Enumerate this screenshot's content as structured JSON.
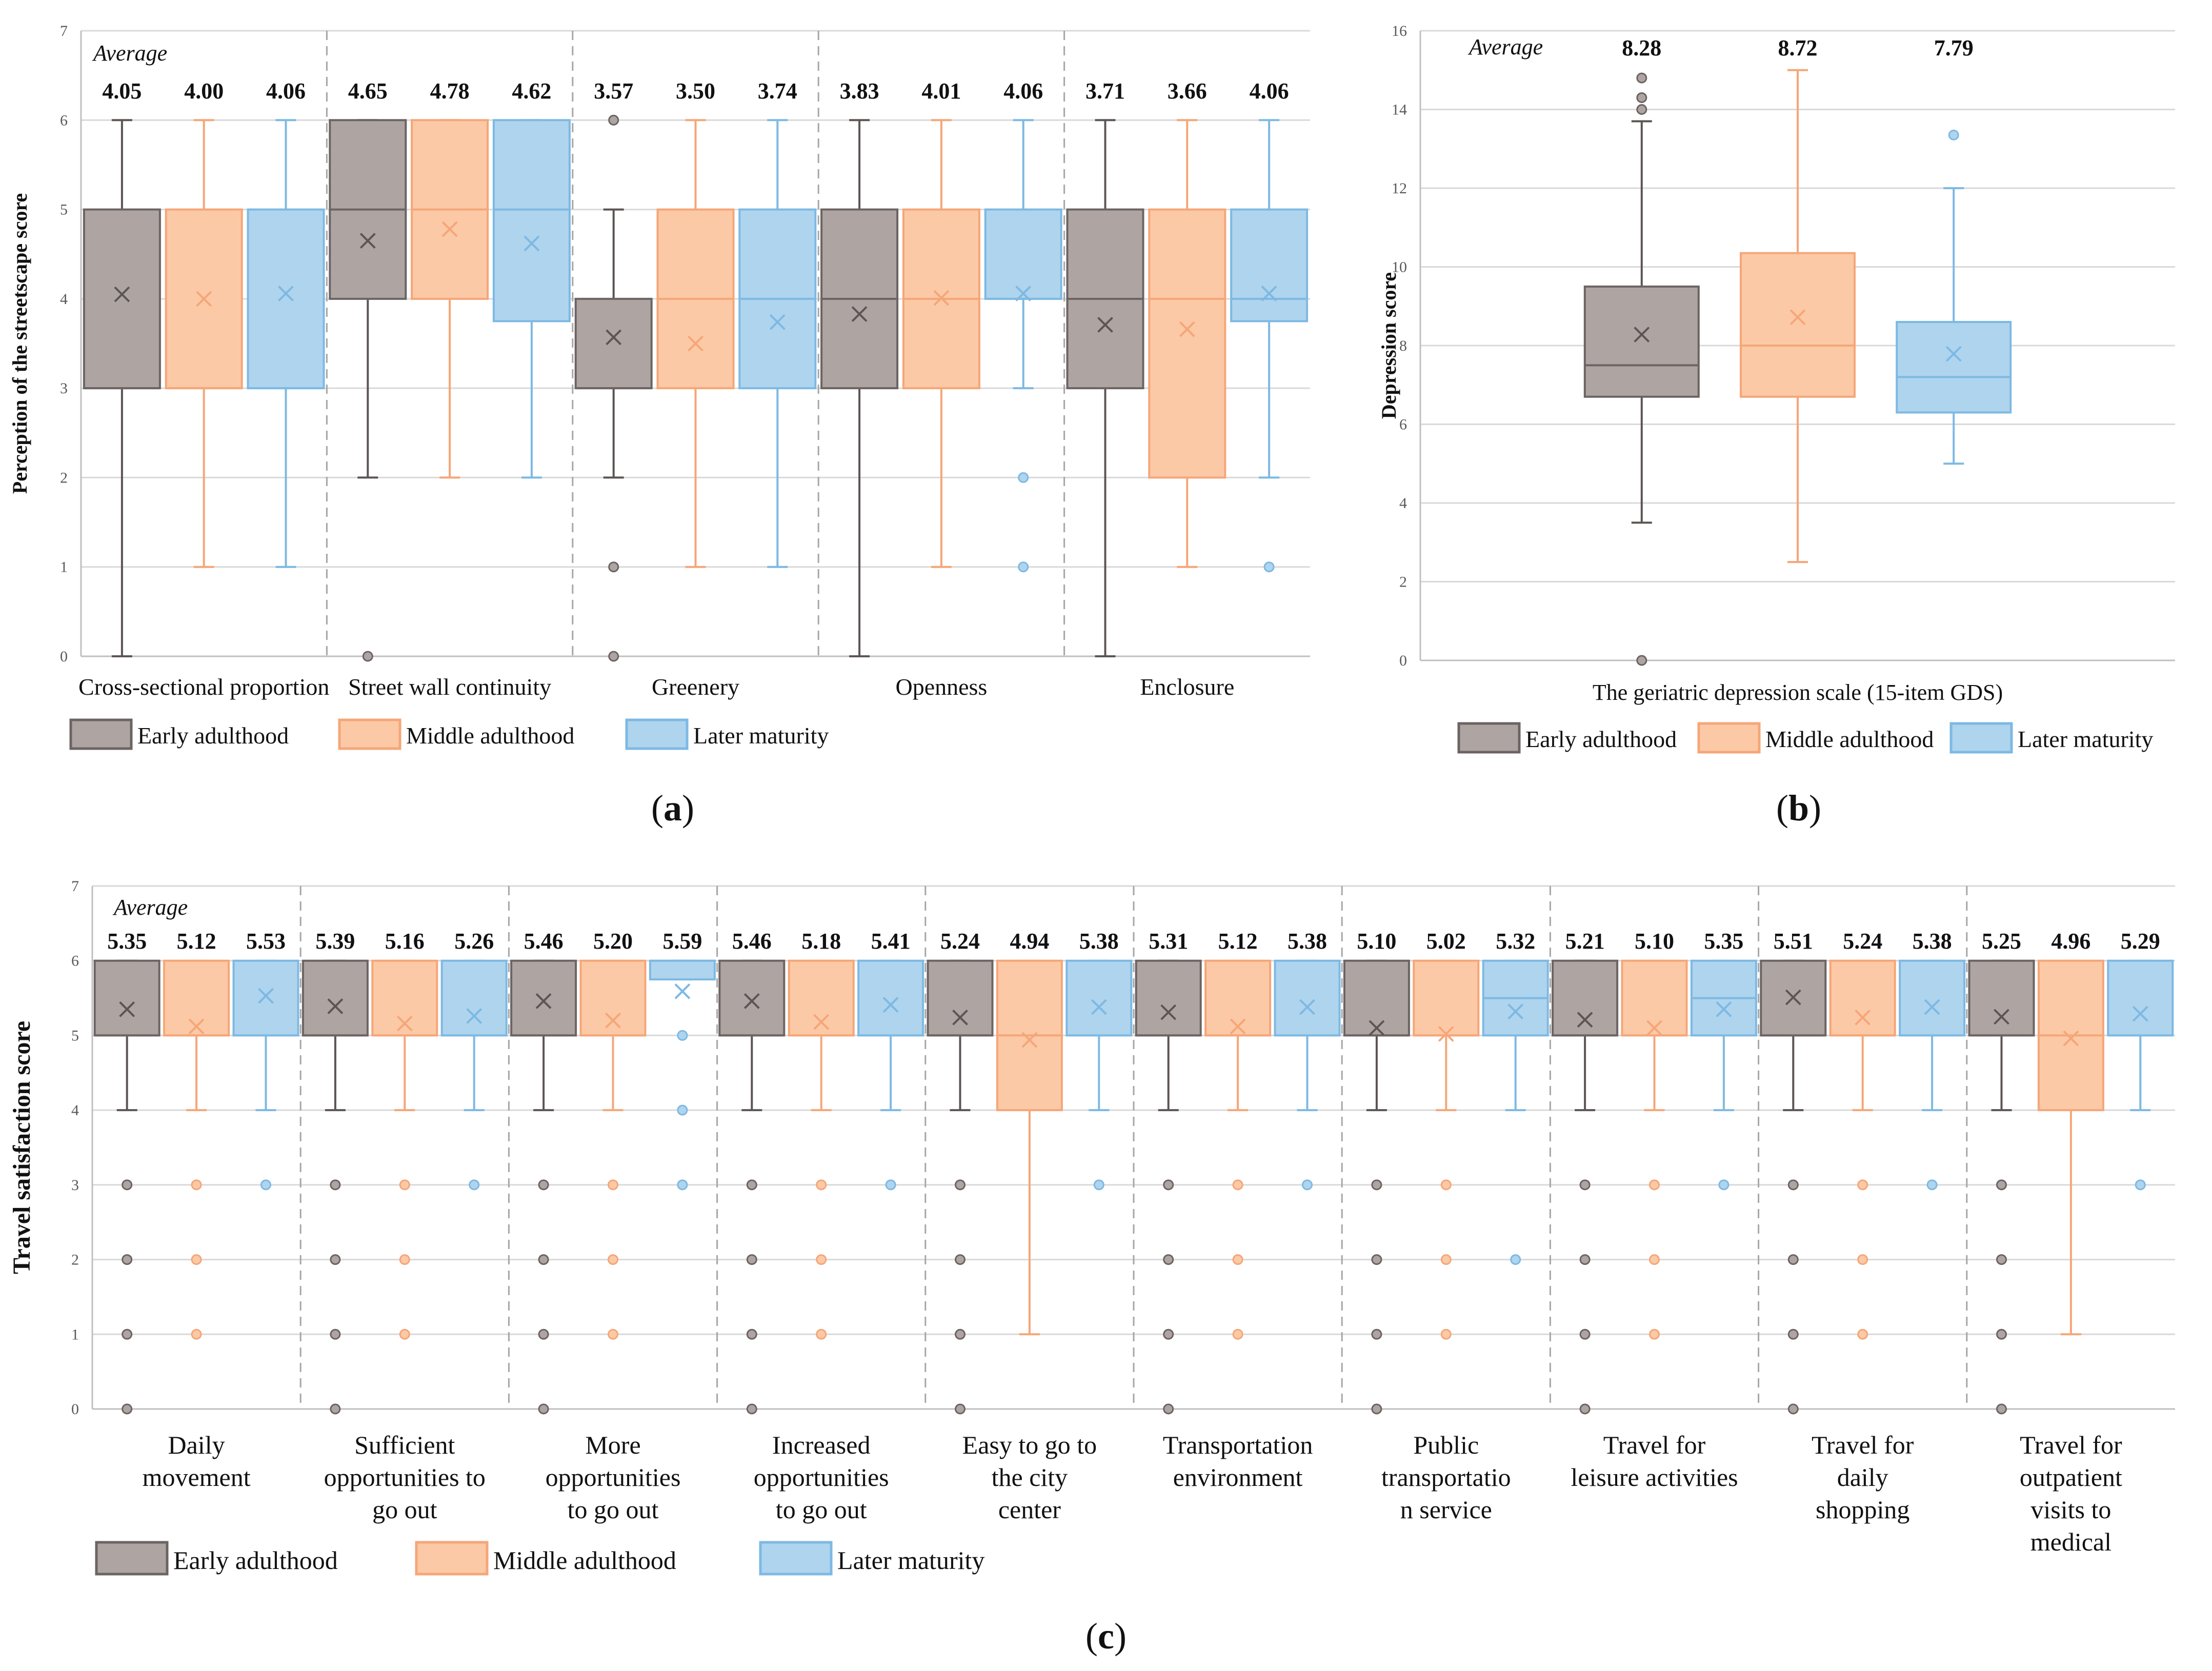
{
  "colors": {
    "Early adulthood": {
      "fill": "#aea5a3",
      "stroke": "#6b6463",
      "whisker": "#5c5554"
    },
    "Middle adulthood": {
      "fill": "#fcc9a6",
      "stroke": "#f5a678",
      "whisker": "#f5a678"
    },
    "Later maturity": {
      "fill": "#afd4ee",
      "stroke": "#7db9e3",
      "whisker": "#7db9e3"
    }
  },
  "chart_data": [
    {
      "id": "a",
      "panel_label": "a",
      "type": "boxplot",
      "ylabel": "Perception of the streetscape score",
      "ylim": [
        0,
        7
      ],
      "yticks": [
        0,
        1,
        2,
        3,
        4,
        5,
        6,
        7
      ],
      "average_label": "Average",
      "legend": [
        "Early adulthood",
        "Middle adulthood",
        "Later maturity"
      ],
      "categories": [
        {
          "label": "Cross-sectional proportion",
          "boxes": [
            {
              "group": "Early adulthood",
              "mean": 4.05,
              "mean_label": "4.05",
              "q1": 3,
              "median": 3,
              "q3": 5,
              "wlo": 0,
              "whi": 6,
              "outliers": []
            },
            {
              "group": "Middle adulthood",
              "mean": 4.0,
              "mean_label": "4.00",
              "q1": 3,
              "median": 3,
              "q3": 5,
              "wlo": 1,
              "whi": 6,
              "outliers": []
            },
            {
              "group": "Later maturity",
              "mean": 4.06,
              "mean_label": "4.06",
              "q1": 3,
              "median": 3,
              "q3": 5,
              "wlo": 1,
              "whi": 6,
              "outliers": []
            }
          ]
        },
        {
          "label": "Street wall continuity",
          "boxes": [
            {
              "group": "Early adulthood",
              "mean": 4.65,
              "mean_label": "4.65",
              "q1": 4,
              "median": 5,
              "q3": 6,
              "wlo": 2,
              "whi": 6,
              "outliers": [
                0
              ]
            },
            {
              "group": "Middle adulthood",
              "mean": 4.78,
              "mean_label": "4.78",
              "q1": 4,
              "median": 5,
              "q3": 6,
              "wlo": 2,
              "whi": 6,
              "outliers": []
            },
            {
              "group": "Later maturity",
              "mean": 4.62,
              "mean_label": "4.62",
              "q1": 3.75,
              "median": 5,
              "q3": 6,
              "wlo": 2,
              "whi": 6,
              "outliers": []
            }
          ]
        },
        {
          "label": "Greenery",
          "boxes": [
            {
              "group": "Early adulthood",
              "mean": 3.57,
              "mean_label": "3.57",
              "q1": 3,
              "median": 3,
              "q3": 4,
              "wlo": 2,
              "whi": 5,
              "outliers": [
                6,
                1,
                0
              ]
            },
            {
              "group": "Middle adulthood",
              "mean": 3.5,
              "mean_label": "3.50",
              "q1": 3,
              "median": 4,
              "q3": 5,
              "wlo": 1,
              "whi": 6,
              "outliers": []
            },
            {
              "group": "Later maturity",
              "mean": 3.74,
              "mean_label": "3.74",
              "q1": 3,
              "median": 4,
              "q3": 5,
              "wlo": 1,
              "whi": 6,
              "outliers": []
            }
          ]
        },
        {
          "label": "Openness",
          "boxes": [
            {
              "group": "Early adulthood",
              "mean": 3.83,
              "mean_label": "3.83",
              "q1": 3,
              "median": 4,
              "q3": 5,
              "wlo": 0,
              "whi": 6,
              "outliers": []
            },
            {
              "group": "Middle adulthood",
              "mean": 4.01,
              "mean_label": "4.01",
              "q1": 3,
              "median": 4,
              "q3": 5,
              "wlo": 1,
              "whi": 6,
              "outliers": []
            },
            {
              "group": "Later maturity",
              "mean": 4.06,
              "mean_label": "4.06",
              "q1": 4,
              "median": 4,
              "q3": 5,
              "wlo": 3,
              "whi": 6,
              "outliers": [
                2,
                1
              ]
            }
          ]
        },
        {
          "label": "Enclosure",
          "boxes": [
            {
              "group": "Early adulthood",
              "mean": 3.71,
              "mean_label": "3.71",
              "q1": 3,
              "median": 4,
              "q3": 5,
              "wlo": 0,
              "whi": 6,
              "outliers": []
            },
            {
              "group": "Middle adulthood",
              "mean": 3.66,
              "mean_label": "3.66",
              "q1": 2,
              "median": 4,
              "q3": 5,
              "wlo": 1,
              "whi": 6,
              "outliers": []
            },
            {
              "group": "Later maturity",
              "mean": 4.06,
              "mean_label": "4.06",
              "q1": 3.75,
              "median": 4,
              "q3": 5,
              "wlo": 2,
              "whi": 6,
              "outliers": [
                1
              ]
            }
          ]
        }
      ]
    },
    {
      "id": "b",
      "panel_label": "b",
      "type": "boxplot",
      "ylabel": "Depression score",
      "xlabel": "The geriatric depression scale (15-item GDS)",
      "ylim": [
        0,
        16
      ],
      "yticks": [
        0,
        2,
        4,
        6,
        8,
        10,
        12,
        14,
        16
      ],
      "average_label": "Average",
      "legend": [
        "Early adulthood",
        "Middle adulthood",
        "Later maturity"
      ],
      "categories": [
        {
          "label": "",
          "boxes": [
            {
              "group": "Early adulthood",
              "mean": 8.28,
              "mean_label": "8.28",
              "q1": 6.7,
              "median": 7.5,
              "q3": 9.5,
              "wlo": 3.5,
              "whi": 13.7,
              "outliers": [
                14.0,
                14.3,
                14.8,
                0
              ]
            },
            {
              "group": "Middle adulthood",
              "mean": 8.72,
              "mean_label": "8.72",
              "q1": 6.7,
              "median": 8.0,
              "q3": 10.35,
              "wlo": 2.5,
              "whi": 15.0,
              "outliers": []
            },
            {
              "group": "Later maturity",
              "mean": 7.79,
              "mean_label": "7.79",
              "q1": 6.3,
              "median": 7.2,
              "q3": 8.6,
              "wlo": 5.0,
              "whi": 12.0,
              "outliers": [
                13.35
              ]
            }
          ]
        }
      ]
    },
    {
      "id": "c",
      "panel_label": "c",
      "type": "boxplot",
      "ylabel": "Travel satisfaction score",
      "ylim": [
        0,
        7
      ],
      "yticks": [
        0,
        1,
        2,
        3,
        4,
        5,
        6,
        7
      ],
      "average_label": "Average",
      "legend": [
        "Early adulthood",
        "Middle adulthood",
        "Later maturity"
      ],
      "categories": [
        {
          "label": [
            "Daily",
            "movement"
          ],
          "boxes": [
            {
              "group": "Early adulthood",
              "mean": 5.35,
              "mean_label": "5.35",
              "q1": 5,
              "median": 5,
              "q3": 6,
              "wlo": 4,
              "whi": 6,
              "outliers": [
                3,
                2,
                1,
                0
              ]
            },
            {
              "group": "Middle adulthood",
              "mean": 5.12,
              "mean_label": "5.12",
              "q1": 5,
              "median": 5,
              "q3": 6,
              "wlo": 4,
              "whi": 6,
              "outliers": [
                3,
                2,
                1
              ]
            },
            {
              "group": "Later maturity",
              "mean": 5.53,
              "mean_label": "5.53",
              "q1": 5,
              "median": 5,
              "q3": 6,
              "wlo": 4,
              "whi": 6,
              "outliers": [
                3
              ]
            }
          ]
        },
        {
          "label": [
            "Sufficient",
            "opportunities to",
            "go out"
          ],
          "boxes": [
            {
              "group": "Early adulthood",
              "mean": 5.39,
              "mean_label": "5.39",
              "q1": 5,
              "median": 5,
              "q3": 6,
              "wlo": 4,
              "whi": 6,
              "outliers": [
                3,
                2,
                1,
                0
              ]
            },
            {
              "group": "Middle adulthood",
              "mean": 5.16,
              "mean_label": "5.16",
              "q1": 5,
              "median": 5,
              "q3": 6,
              "wlo": 4,
              "whi": 6,
              "outliers": [
                3,
                2,
                1
              ]
            },
            {
              "group": "Later maturity",
              "mean": 5.26,
              "mean_label": "5.26",
              "q1": 5,
              "median": 5,
              "q3": 6,
              "wlo": 4,
              "whi": 6,
              "outliers": [
                3
              ]
            }
          ]
        },
        {
          "label": [
            "More",
            "opportunities",
            "to go out"
          ],
          "boxes": [
            {
              "group": "Early adulthood",
              "mean": 5.46,
              "mean_label": "5.46",
              "q1": 5,
              "median": 5,
              "q3": 6,
              "wlo": 4,
              "whi": 6,
              "outliers": [
                3,
                2,
                1,
                0
              ]
            },
            {
              "group": "Middle adulthood",
              "mean": 5.2,
              "mean_label": "5.20",
              "q1": 5,
              "median": 5,
              "q3": 6,
              "wlo": 4,
              "whi": 6,
              "outliers": [
                3,
                2,
                1
              ]
            },
            {
              "group": "Later maturity",
              "mean": 5.59,
              "mean_label": "5.59",
              "q1": 5.75,
              "median": 6,
              "q3": 6,
              "wlo": 5.75,
              "whi": 6,
              "outliers": [
                5,
                4,
                3
              ]
            }
          ]
        },
        {
          "label": [
            "Increased",
            "opportunities",
            "to go out"
          ],
          "boxes": [
            {
              "group": "Early adulthood",
              "mean": 5.46,
              "mean_label": "5.46",
              "q1": 5,
              "median": 5,
              "q3": 6,
              "wlo": 4,
              "whi": 6,
              "outliers": [
                3,
                2,
                1,
                0
              ]
            },
            {
              "group": "Middle adulthood",
              "mean": 5.18,
              "mean_label": "5.18",
              "q1": 5,
              "median": 5,
              "q3": 6,
              "wlo": 4,
              "whi": 6,
              "outliers": [
                3,
                2,
                1
              ]
            },
            {
              "group": "Later maturity",
              "mean": 5.41,
              "mean_label": "5.41",
              "q1": 5,
              "median": 5,
              "q3": 6,
              "wlo": 4,
              "whi": 6,
              "outliers": [
                3
              ]
            }
          ]
        },
        {
          "label": [
            "Easy to go to",
            "the city",
            "center"
          ],
          "boxes": [
            {
              "group": "Early adulthood",
              "mean": 5.24,
              "mean_label": "5.24",
              "q1": 5,
              "median": 5,
              "q3": 6,
              "wlo": 4,
              "whi": 6,
              "outliers": [
                3,
                2,
                1,
                0
              ]
            },
            {
              "group": "Middle adulthood",
              "mean": 4.94,
              "mean_label": "4.94",
              "q1": 4,
              "median": 5,
              "q3": 6,
              "wlo": 1,
              "whi": 6,
              "outliers": []
            },
            {
              "group": "Later maturity",
              "mean": 5.38,
              "mean_label": "5.38",
              "q1": 5,
              "median": 5,
              "q3": 6,
              "wlo": 4,
              "whi": 6,
              "outliers": [
                3
              ]
            }
          ]
        },
        {
          "label": [
            "Transportation",
            "environment"
          ],
          "boxes": [
            {
              "group": "Early adulthood",
              "mean": 5.31,
              "mean_label": "5.31",
              "q1": 5,
              "median": 5,
              "q3": 6,
              "wlo": 4,
              "whi": 6,
              "outliers": [
                3,
                2,
                1,
                0
              ]
            },
            {
              "group": "Middle adulthood",
              "mean": 5.12,
              "mean_label": "5.12",
              "q1": 5,
              "median": 5,
              "q3": 6,
              "wlo": 4,
              "whi": 6,
              "outliers": [
                3,
                2,
                1
              ]
            },
            {
              "group": "Later maturity",
              "mean": 5.38,
              "mean_label": "5.38",
              "q1": 5,
              "median": 5,
              "q3": 6,
              "wlo": 4,
              "whi": 6,
              "outliers": [
                3
              ]
            }
          ]
        },
        {
          "label": [
            "Public",
            "transportatio",
            "n service"
          ],
          "boxes": [
            {
              "group": "Early adulthood",
              "mean": 5.1,
              "mean_label": "5.10",
              "q1": 5,
              "median": 5,
              "q3": 6,
              "wlo": 4,
              "whi": 6,
              "outliers": [
                3,
                2,
                1,
                0
              ]
            },
            {
              "group": "Middle adulthood",
              "mean": 5.02,
              "mean_label": "5.02",
              "q1": 5,
              "median": 5,
              "q3": 6,
              "wlo": 4,
              "whi": 6,
              "outliers": [
                3,
                2,
                1
              ]
            },
            {
              "group": "Later maturity",
              "mean": 5.32,
              "mean_label": "5.32",
              "q1": 5,
              "median": 5.5,
              "q3": 6,
              "wlo": 4,
              "whi": 6,
              "outliers": [
                2
              ]
            }
          ]
        },
        {
          "label": [
            "Travel for",
            "leisure activities"
          ],
          "boxes": [
            {
              "group": "Early adulthood",
              "mean": 5.21,
              "mean_label": "5.21",
              "q1": 5,
              "median": 5,
              "q3": 6,
              "wlo": 4,
              "whi": 6,
              "outliers": [
                3,
                2,
                1,
                0
              ]
            },
            {
              "group": "Middle adulthood",
              "mean": 5.1,
              "mean_label": "5.10",
              "q1": 5,
              "median": 5,
              "q3": 6,
              "wlo": 4,
              "whi": 6,
              "outliers": [
                3,
                2,
                1
              ]
            },
            {
              "group": "Later maturity",
              "mean": 5.35,
              "mean_label": "5.35",
              "q1": 5,
              "median": 5.5,
              "q3": 6,
              "wlo": 4,
              "whi": 6,
              "outliers": [
                3
              ]
            }
          ]
        },
        {
          "label": [
            "Travel for",
            "daily",
            "shopping"
          ],
          "boxes": [
            {
              "group": "Early adulthood",
              "mean": 5.51,
              "mean_label": "5.51",
              "q1": 5,
              "median": 5,
              "q3": 6,
              "wlo": 4,
              "whi": 6,
              "outliers": [
                3,
                2,
                1,
                0
              ]
            },
            {
              "group": "Middle adulthood",
              "mean": 5.24,
              "mean_label": "5.24",
              "q1": 5,
              "median": 5,
              "q3": 6,
              "wlo": 4,
              "whi": 6,
              "outliers": [
                3,
                2,
                1
              ]
            },
            {
              "group": "Later maturity",
              "mean": 5.38,
              "mean_label": "5.38",
              "q1": 5,
              "median": 5,
              "q3": 6,
              "wlo": 4,
              "whi": 6,
              "outliers": [
                3
              ]
            }
          ]
        },
        {
          "label": [
            "Travel for",
            "outpatient",
            "visits to",
            "medical"
          ],
          "boxes": [
            {
              "group": "Early adulthood",
              "mean": 5.25,
              "mean_label": "5.25",
              "q1": 5,
              "median": 5,
              "q3": 6,
              "wlo": 4,
              "whi": 6,
              "outliers": [
                3,
                2,
                1,
                0
              ]
            },
            {
              "group": "Middle adulthood",
              "mean": 4.96,
              "mean_label": "4.96",
              "q1": 4,
              "median": 5,
              "q3": 6,
              "wlo": 1,
              "whi": 6,
              "outliers": []
            },
            {
              "group": "Later maturity",
              "mean": 5.29,
              "mean_label": "5.29",
              "q1": 5,
              "median": 5,
              "q3": 6,
              "wlo": 4,
              "whi": 6,
              "outliers": [
                3
              ]
            }
          ]
        }
      ]
    }
  ]
}
